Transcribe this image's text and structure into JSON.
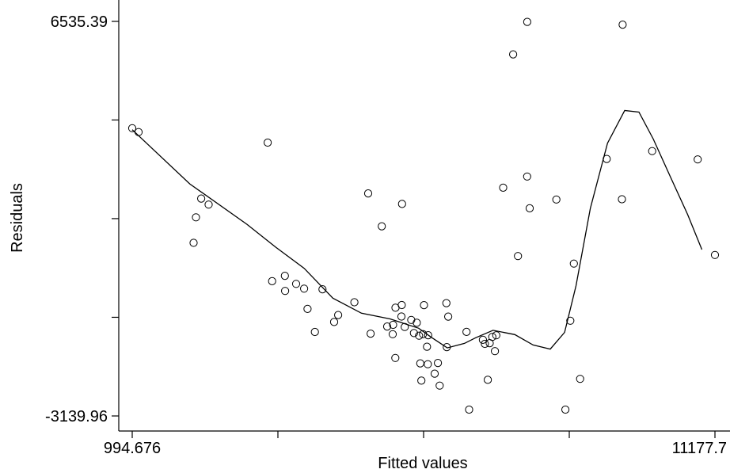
{
  "chart_data": {
    "type": "scatter",
    "xlabel": "Fitted values",
    "ylabel": "Residuals",
    "xlim": [
      994.676,
      11177.7
    ],
    "ylim": [
      -3139.96,
      6535.39
    ],
    "x_ticks": [
      994.676,
      3540.43,
      6086.19,
      8631.94,
      11177.7
    ],
    "x_tick_labels": [
      "994.676",
      "",
      "",
      "",
      "11177.7"
    ],
    "y_ticks": [
      -3139.96,
      -720.34,
      1699.27,
      4117.78,
      6535.39
    ],
    "y_tick_labels": [
      "-3139.96",
      "",
      "",
      "",
      "6535.39"
    ],
    "grid": false,
    "points": [
      [
        994.7,
        3917
      ],
      [
        1105.3,
        3821
      ],
      [
        2067.6,
        1106
      ],
      [
        2108.4,
        1730
      ],
      [
        2199.3,
        2191
      ],
      [
        2329.5,
        2043
      ],
      [
        3362.4,
        3562
      ],
      [
        3439.9,
        164
      ],
      [
        3661.6,
        297
      ],
      [
        3666.3,
        -74
      ],
      [
        3858.1,
        99
      ],
      [
        3997.8,
        -18
      ],
      [
        4057.9,
        -516
      ],
      [
        4186.5,
        -1080
      ],
      [
        4319.5,
        -34
      ],
      [
        4522.3,
        -835
      ],
      [
        4592.7,
        -664
      ],
      [
        4876.4,
        -352
      ],
      [
        5117.8,
        2318
      ],
      [
        5160.9,
        -1122
      ],
      [
        5355.2,
        1512
      ],
      [
        5450.2,
        -947
      ],
      [
        5546.8,
        -1135
      ],
      [
        5553.6,
        -905
      ],
      [
        5591.7,
        -1717
      ],
      [
        5594.4,
        -486
      ],
      [
        5698.7,
        -701
      ],
      [
        5704.7,
        -420
      ],
      [
        5709.3,
        2059
      ],
      [
        5757.2,
        -959
      ],
      [
        5870.8,
        -785
      ],
      [
        5917.8,
        -1108
      ],
      [
        5967.1,
        -855
      ],
      [
        6007.7,
        -1172
      ],
      [
        6028.6,
        -1849
      ],
      [
        6047.0,
        -2274
      ],
      [
        6076.7,
        -1133
      ],
      [
        6092.7,
        -421
      ],
      [
        6146.1,
        -1442
      ],
      [
        6159.2,
        -1872
      ],
      [
        6166.6,
        -1160
      ],
      [
        6279.8,
        -2102
      ],
      [
        6337.0,
        -1840
      ],
      [
        6366.6,
        -2395
      ],
      [
        6484.9,
        -374
      ],
      [
        6491.3,
        -1451
      ],
      [
        6516.9,
        -704
      ],
      [
        6882.4,
        -2984
      ],
      [
        6835.9,
        -1079
      ],
      [
        7121.8,
        -1273
      ],
      [
        7156.6,
        -1372
      ],
      [
        7207.9,
        -2254
      ],
      [
        7240.9,
        -1355
      ],
      [
        7287.3,
        -1201
      ],
      [
        7332.5,
        -1551
      ],
      [
        7356.2,
        -1163
      ],
      [
        7476.8,
        2458
      ],
      [
        7651.3,
        5728
      ],
      [
        7735.2,
        781
      ],
      [
        7895.9,
        2731
      ],
      [
        7896.6,
        6524
      ],
      [
        7940.3,
        1952
      ],
      [
        8405.9,
        2168
      ],
      [
        8564.3,
        -2985
      ],
      [
        8650.1,
        -805
      ],
      [
        8712.6,
        597
      ],
      [
        8822.1,
        -2230
      ],
      [
        9286.6,
        3162
      ],
      [
        9552.4,
        2173
      ],
      [
        9564.2,
        6456
      ],
      [
        10081.0,
        3355
      ],
      [
        10876.2,
        3150
      ],
      [
        11177.7,
        808
      ]
    ],
    "fit_line": [
      [
        994.7,
        3880
      ],
      [
        2000,
        2550
      ],
      [
        3000,
        1560
      ],
      [
        3500,
        1000
      ],
      [
        4000,
        480
      ],
      [
        4500,
        -250
      ],
      [
        5000,
        -620
      ],
      [
        5500,
        -760
      ],
      [
        6000,
        -990
      ],
      [
        6220,
        -1210
      ],
      [
        6500,
        -1472
      ],
      [
        6800,
        -1360
      ],
      [
        7000,
        -1220
      ],
      [
        7300,
        -1040
      ],
      [
        7680,
        -1145
      ],
      [
        8000,
        -1400
      ],
      [
        8300,
        -1500
      ],
      [
        8550,
        -1090
      ],
      [
        8750,
        50
      ],
      [
        9000,
        1950
      ],
      [
        9300,
        3550
      ],
      [
        9600,
        4350
      ],
      [
        9850,
        4310
      ],
      [
        10100,
        3650
      ],
      [
        10400,
        2720
      ],
      [
        10700,
        1800
      ],
      [
        10950,
        940
      ]
    ]
  }
}
